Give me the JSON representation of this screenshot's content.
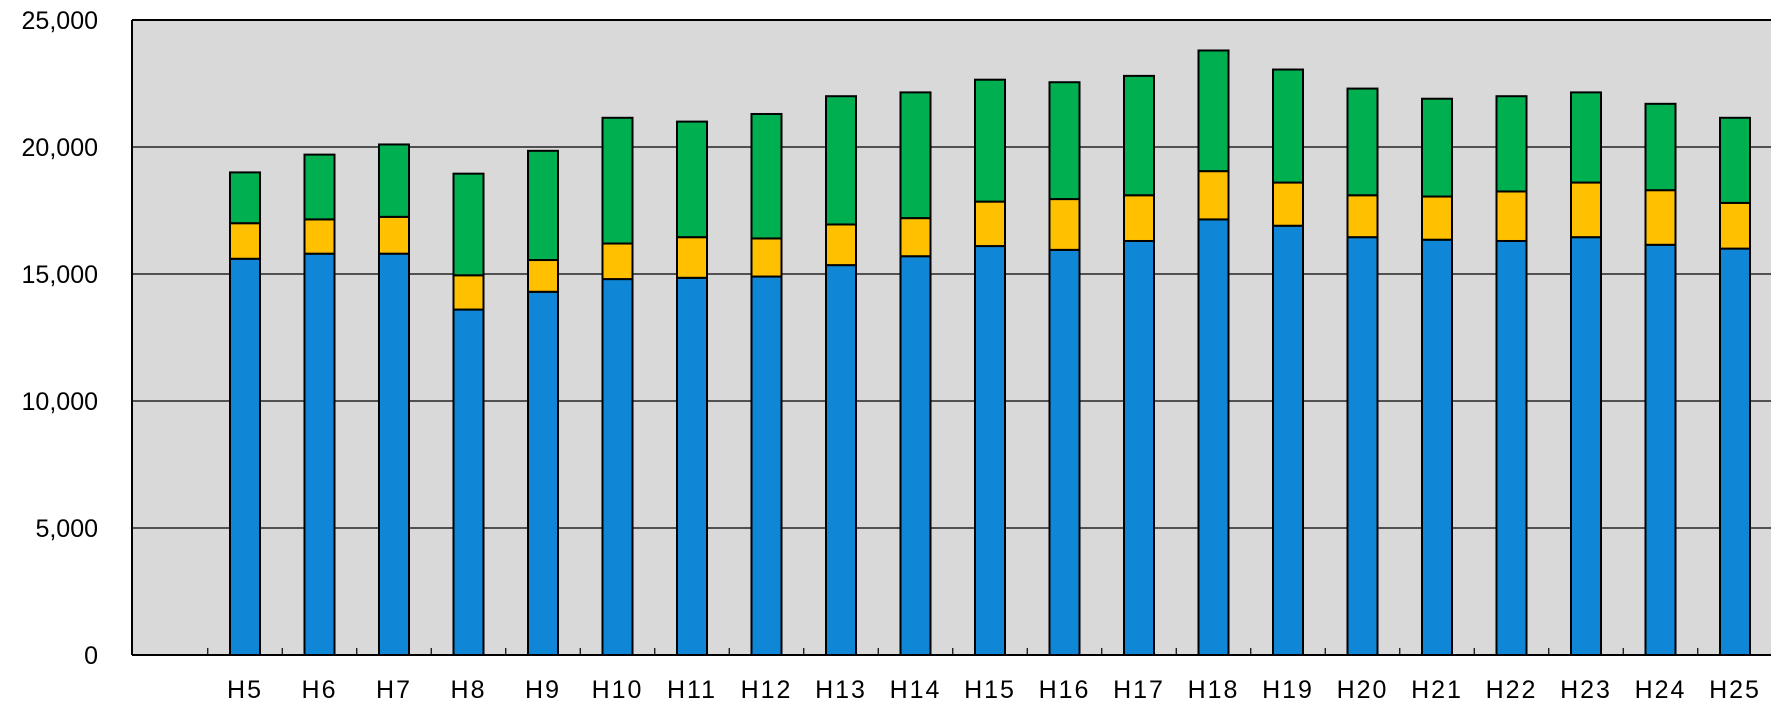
{
  "chart_data": {
    "type": "bar",
    "stacked": true,
    "title": "",
    "xlabel": "",
    "ylabel": "",
    "ylim": [
      0,
      25000
    ],
    "yticks": [
      "0",
      "5,000",
      "10,000",
      "15,000",
      "20,000",
      "25,000"
    ],
    "grid": true,
    "legend": "none",
    "categories": [
      "H5",
      "H6",
      "H7",
      "H8",
      "H9",
      "H10",
      "H11",
      "H12",
      "H13",
      "H14",
      "H15",
      "H16",
      "H17",
      "H18",
      "H19",
      "H20",
      "H21",
      "H22",
      "H23",
      "H24",
      "H25"
    ],
    "series": [
      {
        "color": "#0f86d6",
        "values": [
          15600,
          15800,
          15800,
          13600,
          14300,
          14800,
          14850,
          14900,
          15350,
          15700,
          16100,
          15950,
          16300,
          17150,
          16900,
          16450,
          16350,
          16300,
          16450,
          16150,
          16000
        ]
      },
      {
        "color": "#ffc000",
        "values": [
          1400,
          1350,
          1450,
          1350,
          1250,
          1400,
          1600,
          1500,
          1600,
          1500,
          1750,
          2000,
          1800,
          1900,
          1700,
          1650,
          1700,
          1950,
          2150,
          2150,
          1800
        ]
      },
      {
        "color": "#00b050",
        "values": [
          2000,
          2550,
          2850,
          4000,
          4300,
          4950,
          4550,
          4900,
          5050,
          4950,
          4800,
          4600,
          4700,
          4750,
          4450,
          4200,
          3850,
          3750,
          3550,
          3400,
          3350
        ]
      }
    ],
    "plot_background": "#d9d9d9",
    "gridline_color": "#000000",
    "bar_outline": "#000000"
  }
}
